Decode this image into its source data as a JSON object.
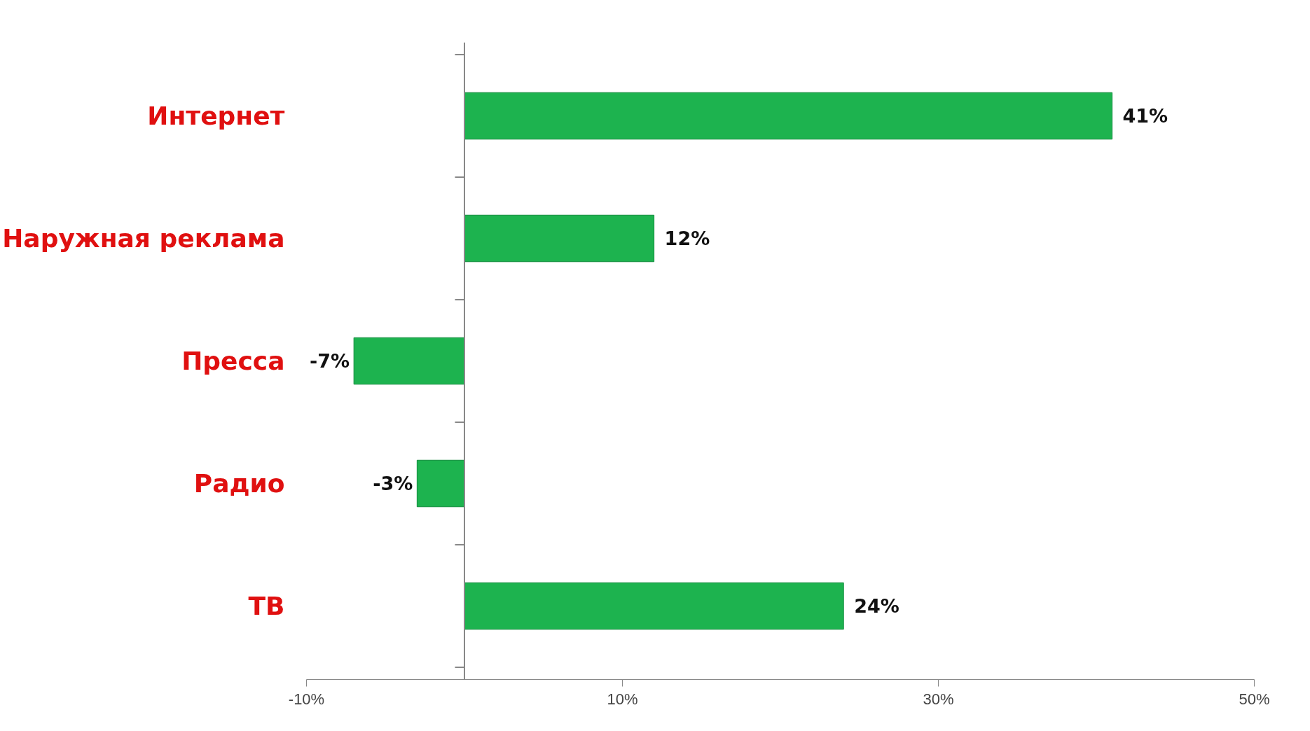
{
  "chart_data": {
    "type": "bar",
    "orientation": "horizontal",
    "categories": [
      "Интернет",
      "Наружная реклама",
      "Пресса",
      "Радио",
      "ТВ"
    ],
    "values": [
      41,
      12,
      -7,
      -3,
      24
    ],
    "value_labels": [
      "41%",
      "12%",
      "-7%",
      "-3%",
      "24%"
    ],
    "color": "#1db34f",
    "xlim": [
      -10,
      50
    ],
    "xticks": [
      {
        "value": -10,
        "label": "-10%"
      },
      {
        "value": 10,
        "label": "10%"
      },
      {
        "value": 30,
        "label": "30%"
      },
      {
        "value": 50,
        "label": "50%"
      }
    ],
    "grid": false
  }
}
